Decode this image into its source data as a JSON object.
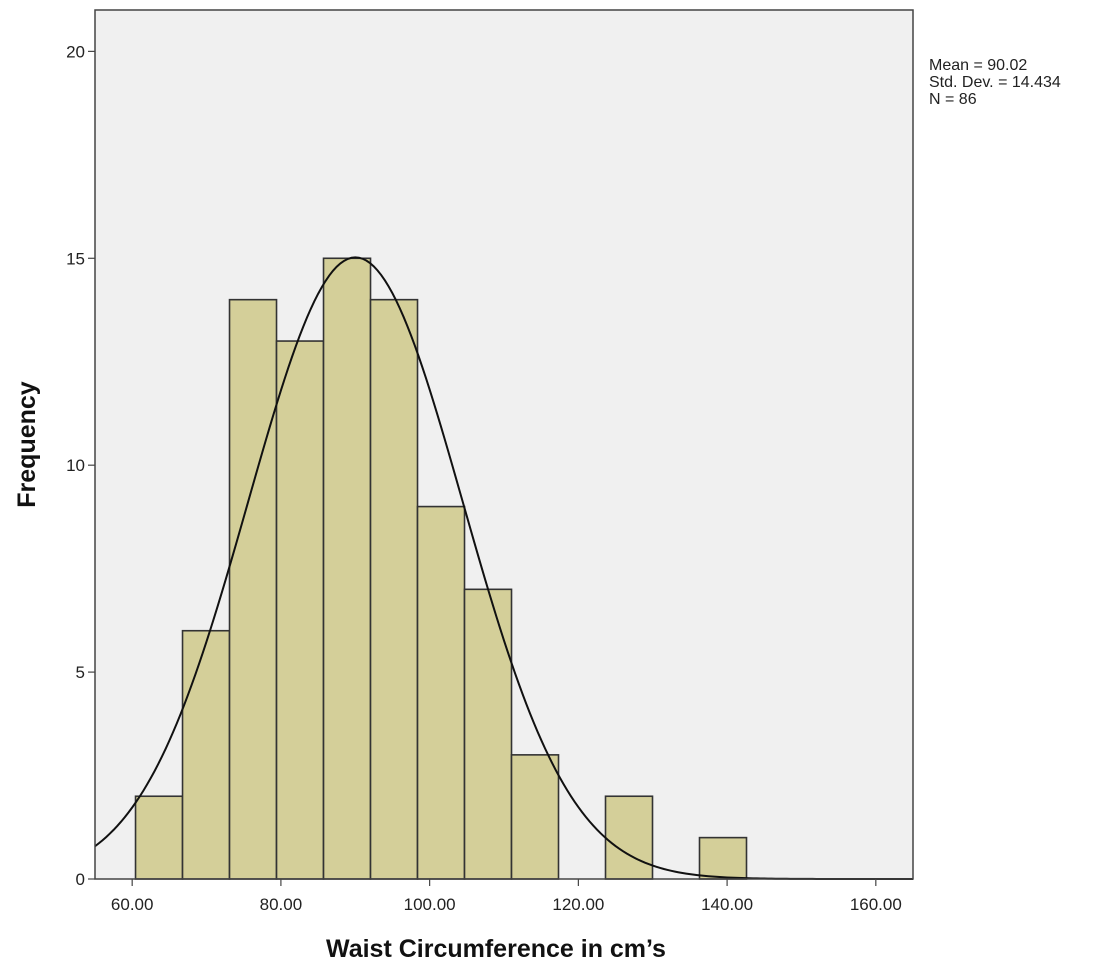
{
  "chart_data": {
    "type": "bar",
    "subtype": "histogram",
    "xlabel": "Waist Circumference in cm’s",
    "ylabel": "Frequency",
    "xlim": [
      55,
      165
    ],
    "ylim": [
      0,
      21
    ],
    "x_ticks": [
      "60.00",
      "80.00",
      "100.00",
      "120.00",
      "140.00",
      "160.00"
    ],
    "x_tick_values": [
      60,
      80,
      100,
      120,
      140,
      160
    ],
    "y_ticks": [
      "0",
      "5",
      "10",
      "15",
      "20"
    ],
    "y_tick_values": [
      0,
      5,
      10,
      15,
      20
    ],
    "bin_width": 6.32,
    "bins": [
      {
        "start": 60.45,
        "end": 66.77,
        "count": 2
      },
      {
        "start": 66.77,
        "end": 73.09,
        "count": 6
      },
      {
        "start": 73.09,
        "end": 79.41,
        "count": 14
      },
      {
        "start": 79.41,
        "end": 85.73,
        "count": 13
      },
      {
        "start": 85.73,
        "end": 92.05,
        "count": 15
      },
      {
        "start": 92.05,
        "end": 98.37,
        "count": 14
      },
      {
        "start": 98.37,
        "end": 104.69,
        "count": 9
      },
      {
        "start": 104.69,
        "end": 111.01,
        "count": 7
      },
      {
        "start": 111.01,
        "end": 117.33,
        "count": 3
      },
      {
        "start": 117.33,
        "end": 123.65,
        "count": 0
      },
      {
        "start": 123.65,
        "end": 129.97,
        "count": 2
      },
      {
        "start": 129.97,
        "end": 136.29,
        "count": 0
      },
      {
        "start": 136.29,
        "end": 142.61,
        "count": 1
      }
    ],
    "normal_curve": {
      "mean": 90.02,
      "std_dev": 14.434,
      "n": 86
    },
    "grid": false,
    "colors": {
      "bar_fill": "#d4cf99",
      "bar_stroke": "#333333",
      "plot_bg": "#f0f0f0",
      "curve": "#111111"
    },
    "stats": {
      "mean_label": "Mean = 90.02",
      "std_label": "Std. Dev. = 14.434",
      "n_label": "N = 86"
    }
  }
}
